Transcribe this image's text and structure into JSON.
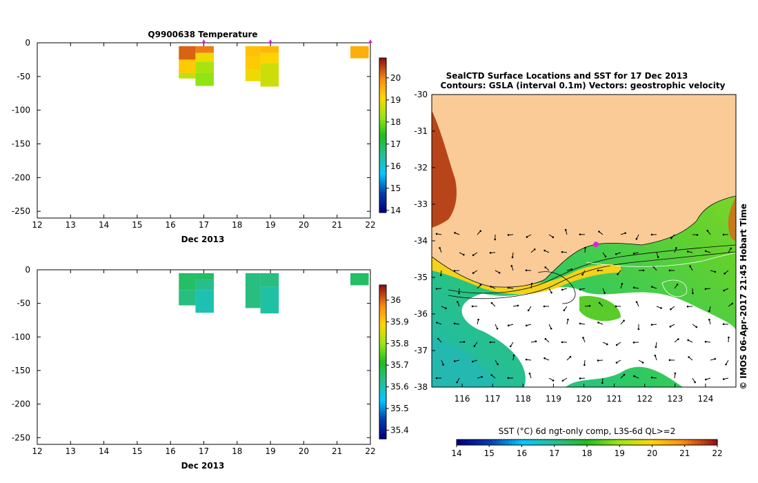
{
  "chart_data": [
    {
      "type": "heatmap",
      "title": "Q9900638  Temperature",
      "xlabel": "Dec 2013",
      "x_ticks": [
        12,
        13,
        14,
        15,
        16,
        17,
        18,
        19,
        20,
        21,
        22
      ],
      "xlim": [
        12,
        22
      ],
      "ylim": [
        -260,
        0
      ],
      "y_ticks": [
        0,
        -50,
        -100,
        -150,
        -200,
        -250
      ],
      "y_tick_labels": [
        "0",
        "-50",
        "-100",
        "-150",
        "-200",
        "-250"
      ],
      "colorbar": {
        "ticks": [
          14,
          15,
          16,
          17,
          18,
          19,
          20
        ],
        "range": [
          13.9,
          20.9
        ]
      },
      "profile_markers_x": [
        17.0,
        19.0,
        22.0
      ],
      "profiles": [
        {
          "x0": 16.25,
          "x1": 16.75,
          "cells": [
            [
              -5,
              -25,
              20.3
            ],
            [
              -25,
              -45,
              19.3
            ],
            [
              -45,
              -53,
              18.6
            ]
          ]
        },
        {
          "x0": 16.75,
          "x1": 17.3,
          "cells": [
            [
              -5,
              -15,
              20.1
            ],
            [
              -15,
              -28,
              19.0
            ],
            [
              -28,
              -45,
              18.4
            ],
            [
              -45,
              -64,
              18.2
            ]
          ]
        },
        {
          "x0": 18.25,
          "x1": 18.7,
          "cells": [
            [
              -5,
              -20,
              19.4
            ],
            [
              -20,
              -40,
              19.3
            ],
            [
              -40,
              -57,
              19.0
            ]
          ]
        },
        {
          "x0": 18.7,
          "x1": 19.25,
          "cells": [
            [
              -5,
              -15,
              19.5
            ],
            [
              -15,
              -30,
              19.2
            ],
            [
              -30,
              -65,
              18.7
            ]
          ]
        },
        {
          "x0": 21.4,
          "x1": 21.95,
          "cells": [
            [
              -5,
              -23,
              19.6
            ]
          ]
        }
      ]
    },
    {
      "type": "heatmap",
      "title": "",
      "xlabel": "Dec 2013",
      "x_ticks": [
        12,
        13,
        14,
        15,
        16,
        17,
        18,
        19,
        20,
        21,
        22
      ],
      "xlim": [
        12,
        22
      ],
      "ylim": [
        -260,
        0
      ],
      "y_ticks": [
        0,
        -50,
        -100,
        -150,
        -200,
        -250
      ],
      "y_tick_labels": [
        "0",
        "-50",
        "-100",
        "-150",
        "-200",
        "-250"
      ],
      "colorbar": {
        "ticks": [
          35.4,
          35.5,
          35.6,
          35.7,
          35.8,
          35.9,
          36
        ],
        "tick_labels": [
          "35.4",
          "35.5",
          "35.6",
          "35.7",
          "35.8",
          "35.9",
          "36"
        ],
        "range": [
          35.36,
          36.07
        ]
      },
      "profiles": [
        {
          "x0": 16.25,
          "x1": 16.75,
          "cells": [
            [
              -5,
              -30,
              35.66
            ],
            [
              -30,
              -53,
              35.64
            ]
          ]
        },
        {
          "x0": 16.75,
          "x1": 17.3,
          "cells": [
            [
              -5,
              -15,
              35.66
            ],
            [
              -15,
              -30,
              35.63
            ],
            [
              -30,
              -64,
              35.6
            ]
          ]
        },
        {
          "x0": 18.25,
          "x1": 18.7,
          "cells": [
            [
              -5,
              -57,
              35.64
            ]
          ]
        },
        {
          "x0": 18.7,
          "x1": 19.25,
          "cells": [
            [
              -5,
              -25,
              35.64
            ],
            [
              -25,
              -65,
              35.61
            ]
          ]
        },
        {
          "x0": 21.4,
          "x1": 21.95,
          "cells": [
            [
              -5,
              -23,
              35.66
            ]
          ]
        }
      ]
    },
    {
      "type": "heatmap",
      "title": "SealCTD Surface Locations and SST for 17 Dec 2013",
      "subtitle": "Contours: GSLA (interval 0.1m)  Vectors: geostrophic velocity",
      "x_ticks": [
        116,
        117,
        118,
        119,
        120,
        121,
        122,
        123,
        124
      ],
      "y_ticks": [
        -30,
        -31,
        -32,
        -33,
        -34,
        -35,
        -36,
        -37,
        -38
      ],
      "xlim": [
        115,
        125
      ],
      "ylim": [
        -38,
        -30
      ],
      "colorbar_label": "SST (°C) 6d ngt-only comp, L3S-6d QL>=2",
      "colorbar_ticks": [
        14,
        15,
        16,
        17,
        18,
        19,
        20,
        21,
        22
      ],
      "colorbar_range": [
        14,
        22
      ],
      "seal_position": {
        "lon": 120.4,
        "lat": -34.1
      },
      "credit": "© IMOS 06-Apr-2017 21:45 Hobart Time"
    }
  ],
  "colors": {
    "land": "#FACB97",
    "seal_marker": "#E020E0",
    "axis": "#000000"
  }
}
